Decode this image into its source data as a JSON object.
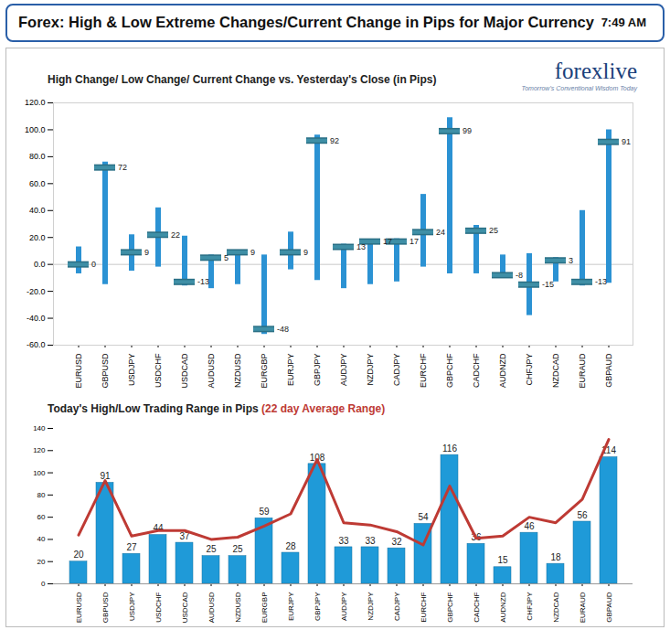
{
  "header": {
    "title": "Forex:  High & Low Extreme Changes/Current Change in Pips for Major Currency",
    "time": "7:49 AM",
    "logo": "forexlive",
    "tagline": "Tomorrow's Conventional Wisdom Today"
  },
  "chart_data": [
    {
      "type": "range",
      "title": "High Change/ Low Change/ Current Change vs. Yesterday's Close (in Pips)",
      "categories": [
        "EURUSD",
        "GBPUSD",
        "USDJPY",
        "USDCHF",
        "USDCAD",
        "AUDUSD",
        "NZDUSD",
        "EURGBP",
        "EURJPY",
        "GBPJPY",
        "AUDJPY",
        "NZDJPY",
        "CADJPY",
        "EURCHF",
        "GBPCHF",
        "CADCHF",
        "AUDNZD",
        "CHFJPY",
        "NZDCAD",
        "EURAUD",
        "GBPAUD"
      ],
      "series": [
        {
          "type": "range",
          "color": "#2b92d3",
          "high": [
            13,
            76,
            22,
            42,
            21,
            7,
            10,
            7,
            24,
            96,
            15,
            18,
            19,
            52,
            109,
            29,
            7,
            8,
            5,
            40,
            100
          ],
          "low": [
            -7,
            -15,
            -5,
            -2,
            -16,
            -18,
            -15,
            -52,
            -4,
            -12,
            -18,
            -15,
            -13,
            -2,
            -7,
            -7,
            -8,
            -38,
            -13,
            -16,
            -14
          ]
        },
        {
          "type": "marker",
          "marker": "dash",
          "color": "#3f8fa6",
          "values": [
            0,
            72,
            9,
            22,
            -13,
            5,
            9,
            -48,
            9,
            92,
            13,
            17,
            17,
            24,
            99,
            25,
            -8,
            -15,
            3,
            -13,
            91
          ]
        }
      ],
      "data_labels": true,
      "ylim": [
        -60,
        120
      ],
      "yticks": [
        {
          "value": -60,
          "label": "-60.0"
        },
        {
          "value": -40,
          "label": "-40.0"
        },
        {
          "value": -20,
          "label": "-20.0"
        },
        {
          "value": 0,
          "label": "0.0"
        },
        {
          "value": 20,
          "label": "20.0"
        },
        {
          "value": 40,
          "label": "40.0"
        },
        {
          "value": 60,
          "label": "60.0"
        },
        {
          "value": 80,
          "label": "80.0"
        },
        {
          "value": 100,
          "label": "100.0"
        },
        {
          "value": 120,
          "label": "120.0"
        }
      ],
      "grid": false
    },
    {
      "type": "bar",
      "categories": [
        "EURUSD",
        "GBPUSD",
        "USDJPY",
        "USDCHF",
        "USDCAD",
        "AUDUSD",
        "NZDUSD",
        "EURGBP",
        "EURJPY",
        "GBPJPY",
        "AUDJPY",
        "NZDJPY",
        "CADJPY",
        "EURCHF",
        "GBPCHF",
        "CADCHF",
        "AUDNZD",
        "CHFJPY",
        "NZDCAD",
        "EURAUD",
        "GBPAUD"
      ],
      "series": [
        {
          "name": "Today's High/Low Trading Range in Pips",
          "type": "bar",
          "color": "#1f9ad8",
          "data_labels": true,
          "values": [
            20,
            91,
            27,
            44,
            37,
            25,
            25,
            59,
            28,
            108,
            33,
            33,
            32,
            54,
            116,
            36,
            15,
            46,
            18,
            56,
            114
          ]
        },
        {
          "name": "(22 day Average Range)",
          "type": "line",
          "color": "#be3a34",
          "values": [
            44,
            93,
            43,
            48,
            48,
            40,
            42,
            52,
            63,
            112,
            55,
            53,
            47,
            35,
            88,
            41,
            43,
            60,
            55,
            76,
            130
          ]
        }
      ],
      "ylim": [
        0,
        140
      ],
      "yticks": [
        0,
        20,
        40,
        60,
        80,
        100,
        120,
        140
      ],
      "grid": false
    }
  ]
}
